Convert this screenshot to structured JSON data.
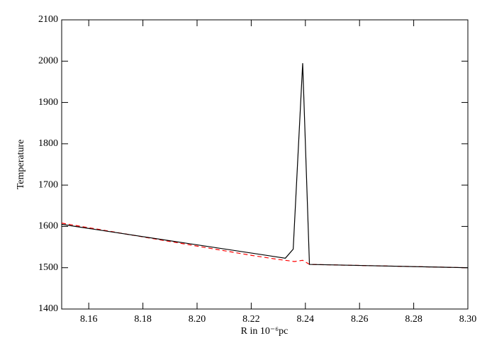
{
  "chart_data": {
    "type": "line",
    "xlabel": "R in 10⁻⁶pc",
    "ylabel": "Temperature",
    "xlim": [
      8.15,
      8.3
    ],
    "ylim": [
      1400,
      2100
    ],
    "xticks": [
      {
        "value": 8.16,
        "label": "8.16"
      },
      {
        "value": 8.18,
        "label": "8.18"
      },
      {
        "value": 8.2,
        "label": "8.20"
      },
      {
        "value": 8.22,
        "label": "8.22"
      },
      {
        "value": 8.24,
        "label": "8.24"
      },
      {
        "value": 8.26,
        "label": "8.26"
      },
      {
        "value": 8.28,
        "label": "8.28"
      },
      {
        "value": 8.3,
        "label": "8.30"
      }
    ],
    "yticks": [
      1400,
      1500,
      1600,
      1700,
      1800,
      1900,
      2000,
      2100
    ],
    "grid": false,
    "series": [
      {
        "color": "#000000",
        "dash": false,
        "x": [
          8.15,
          8.2326,
          8.2355,
          8.239,
          8.2415,
          8.3
        ],
        "values": [
          1605,
          1523,
          1545,
          1995,
          1508,
          1500
        ]
      },
      {
        "color": "#ff0000",
        "dash": true,
        "x": [
          8.15,
          8.22,
          8.23,
          8.236,
          8.239,
          8.2415,
          8.3
        ],
        "values": [
          1608,
          1530,
          1520,
          1515,
          1518,
          1508,
          1500
        ]
      }
    ]
  }
}
